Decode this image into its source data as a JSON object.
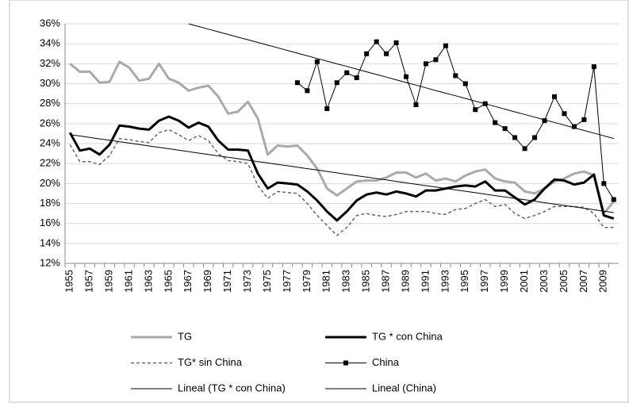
{
  "chart_data": {
    "type": "line",
    "categories": [
      "1955",
      null,
      "1957",
      null,
      "1959",
      null,
      "1961",
      null,
      "1963",
      null,
      "1965",
      null,
      "1967",
      null,
      "1969",
      null,
      "1971",
      null,
      "1973",
      null,
      "1975",
      null,
      "1977",
      null,
      "1979",
      null,
      "1981",
      null,
      "1983",
      null,
      "1985",
      null,
      "1987",
      null,
      "1989",
      null,
      "1991",
      null,
      "1993",
      null,
      "1995",
      null,
      "1997",
      null,
      "1999",
      null,
      "2001",
      null,
      "2003",
      null,
      "2005",
      null,
      "2007",
      null,
      "2009",
      null
    ],
    "ylim": [
      12,
      36
    ],
    "yticks": [
      {
        "value": 12,
        "label": "12%"
      },
      {
        "value": 14,
        "label": "14%"
      },
      {
        "value": 16,
        "label": "16%"
      },
      {
        "value": 18,
        "label": "18%"
      },
      {
        "value": 20,
        "label": "20%"
      },
      {
        "value": 22,
        "label": "22%"
      },
      {
        "value": 24,
        "label": "24%"
      },
      {
        "value": 26,
        "label": "26%"
      },
      {
        "value": 28,
        "label": "28%"
      },
      {
        "value": 30,
        "label": "30%"
      },
      {
        "value": 32,
        "label": "32%"
      },
      {
        "value": 34,
        "label": "34%"
      },
      {
        "value": 36,
        "label": "36%"
      }
    ],
    "grid": true,
    "series": [
      {
        "name": "TG",
        "color": "#aaaaaa",
        "values": [
          32,
          31.2,
          31.2,
          30.1,
          30.2,
          32.2,
          31.6,
          30.3,
          30.5,
          32.0,
          30.5,
          30.1,
          29.3,
          29.6,
          29.8,
          28.7,
          27.0,
          27.2,
          28.2,
          26.5,
          22.9,
          23.8,
          23.7,
          23.8,
          22.8,
          21.5,
          19.5,
          18.8,
          19.5,
          20.2,
          20.3,
          20.3,
          20.6,
          21.1,
          21.1,
          20.6,
          21.0,
          20.3,
          20.5,
          20.2,
          20.8,
          21.2,
          21.4,
          20.5,
          20.2,
          20.1,
          19.2,
          19.0,
          19.5,
          20.2,
          20.5,
          21.0,
          21.2,
          20.8,
          17.0,
          18.2
        ]
      },
      {
        "name": "TG * con China",
        "color": "#000000",
        "values": [
          25.1,
          23.3,
          23.5,
          22.9,
          23.9,
          25.8,
          25.7,
          25.5,
          25.4,
          26.3,
          26.7,
          26.3,
          25.6,
          26.1,
          25.7,
          24.3,
          23.4,
          23.4,
          23.3,
          21.0,
          19.5,
          20.1,
          20.0,
          19.9,
          19.2,
          18.3,
          17.2,
          16.3,
          17.2,
          18.3,
          18.9,
          19.1,
          18.9,
          19.2,
          19.0,
          18.7,
          19.3,
          19.3,
          19.5,
          19.7,
          19.8,
          19.7,
          20.2,
          19.3,
          19.3,
          18.6,
          17.9,
          18.4,
          19.5,
          20.4,
          20.3,
          19.9,
          20.1,
          20.9,
          16.8,
          16.5
        ]
      },
      {
        "name": "TG* sin China",
        "color": "#666666",
        "dashed": true,
        "values": [
          23.9,
          22.2,
          22.2,
          21.9,
          22.8,
          24.5,
          24.4,
          24.2,
          24.1,
          25.1,
          25.4,
          24.9,
          24.3,
          24.8,
          24.3,
          23.0,
          22.3,
          22.2,
          22.0,
          19.8,
          18.5,
          19.2,
          19.1,
          19.0,
          18.0,
          16.8,
          15.8,
          14.8,
          15.6,
          16.8,
          17.0,
          16.8,
          16.7,
          16.9,
          17.2,
          17.2,
          17.2,
          17.0,
          16.9,
          17.4,
          17.5,
          18.0,
          18.4,
          17.7,
          17.9,
          17.0,
          16.5,
          16.8,
          17.2,
          17.7,
          17.7,
          17.7,
          17.6,
          17.0,
          15.6,
          15.6
        ]
      },
      {
        "name": "China",
        "color": "#000000",
        "marker": "square",
        "values": [
          null,
          null,
          null,
          null,
          null,
          null,
          null,
          null,
          null,
          null,
          null,
          null,
          null,
          null,
          null,
          null,
          null,
          null,
          null,
          null,
          null,
          null,
          null,
          30.1,
          29.3,
          32.2,
          27.5,
          30.1,
          31.1,
          30.6,
          33.0,
          34.2,
          33.0,
          34.1,
          30.7,
          27.9,
          32.0,
          32.4,
          33.8,
          30.8,
          30.0,
          27.4,
          28.0,
          26.1,
          25.5,
          24.6,
          23.5,
          24.6,
          26.3,
          28.7,
          27.0,
          25.7,
          26.4,
          31.7,
          20.0,
          18.4
        ]
      },
      {
        "name": "Lineal (TG * con China)",
        "color": "#000000",
        "thin": true,
        "values": [
          24.9,
          24.76,
          24.62,
          24.47,
          24.33,
          24.19,
          24.05,
          23.91,
          23.76,
          23.62,
          23.48,
          23.34,
          23.2,
          23.05,
          22.91,
          22.77,
          22.63,
          22.49,
          22.34,
          22.2,
          22.06,
          21.92,
          21.78,
          21.63,
          21.49,
          21.35,
          21.21,
          21.07,
          20.92,
          20.78,
          20.64,
          20.5,
          20.36,
          20.21,
          20.07,
          19.93,
          19.79,
          19.65,
          19.5,
          19.36,
          19.22,
          19.08,
          18.94,
          18.79,
          18.65,
          18.51,
          18.37,
          18.23,
          18.08,
          17.94,
          17.8,
          17.66,
          17.52,
          17.37,
          17.23,
          17.09
        ]
      },
      {
        "name": "Lineal (China)",
        "color": "#000000",
        "thin": true,
        "values": [
          null,
          null,
          null,
          null,
          null,
          null,
          null,
          null,
          null,
          null,
          null,
          null,
          36.0,
          35.73,
          35.47,
          35.2,
          34.93,
          34.66,
          34.4,
          34.13,
          33.86,
          33.6,
          33.33,
          33.06,
          32.79,
          32.53,
          32.26,
          31.99,
          31.73,
          31.46,
          31.19,
          30.92,
          30.66,
          30.39,
          30.12,
          29.86,
          29.59,
          29.32,
          29.05,
          28.79,
          28.52,
          28.25,
          27.99,
          27.72,
          27.45,
          27.18,
          26.92,
          26.65,
          26.38,
          26.12,
          25.85,
          25.58,
          25.31,
          25.05,
          24.78,
          24.51
        ]
      }
    ]
  }
}
